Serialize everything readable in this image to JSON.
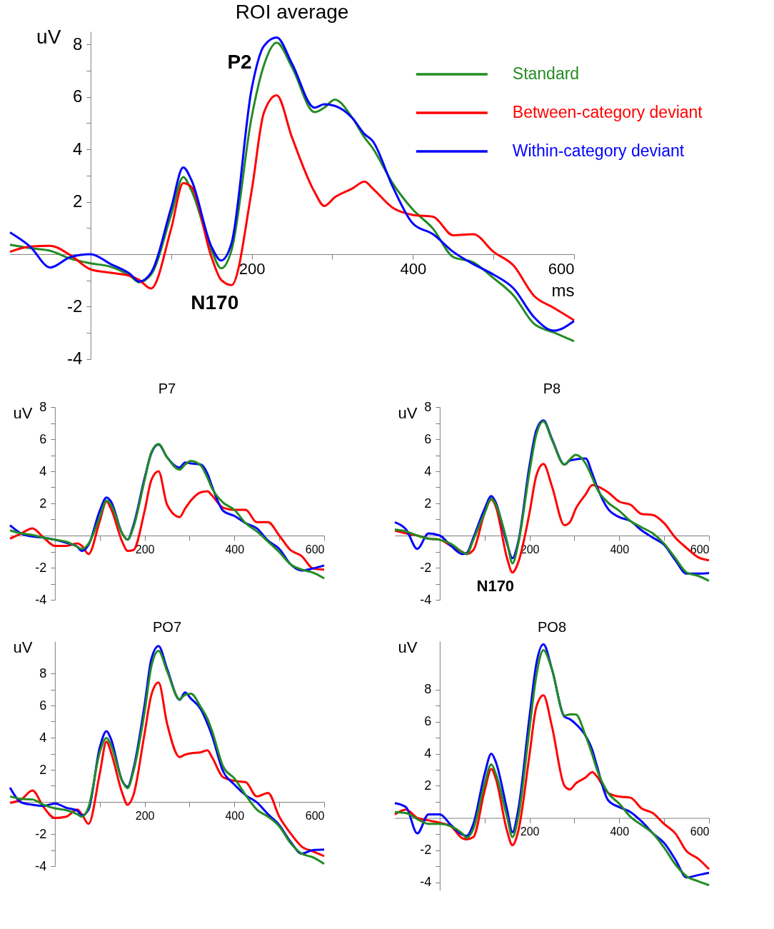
{
  "chart_data": [
    {
      "type": "line",
      "title": "ROI average",
      "xlabel": "ms",
      "ylabel": "uV",
      "legend": "top right",
      "xlim": [
        -100,
        600
      ],
      "ylim": [
        -4,
        8.5
      ],
      "xticks": [
        {
          "value": 100,
          "label": null
        },
        200,
        {
          "value": 300,
          "label": null
        },
        400,
        {
          "value": 500,
          "label": null
        },
        600
      ],
      "yticks": [
        -4,
        {
          "value": -3,
          "label": null
        },
        -2,
        {
          "value": -1,
          "label": null
        },
        {
          "value": 1,
          "label": null
        },
        2,
        {
          "value": 3,
          "label": null
        },
        4,
        {
          "value": 5,
          "label": null
        },
        6,
        {
          "value": 7,
          "label": null
        },
        8
      ],
      "annotations": [
        "P2",
        "N170"
      ],
      "x": [
        -100,
        -75,
        -50,
        -25,
        0,
        25,
        50,
        60,
        75,
        100,
        115,
        125,
        150,
        162,
        175,
        200,
        215,
        231,
        250,
        278,
        290,
        303,
        325,
        340,
        350,
        375,
        400,
        425,
        450,
        475,
        500,
        525,
        550,
        575,
        600
      ],
      "series": [
        {
          "name": "Standard",
          "color": "#238c23",
          "values": [
            0.36,
            0.23,
            0.13,
            -0.17,
            -0.35,
            -0.48,
            -0.85,
            -1.07,
            -0.78,
            1.5,
            2.94,
            2.44,
            0.16,
            -0.54,
            0.16,
            5.25,
            7.2,
            8.07,
            7.13,
            5.42,
            5.59,
            5.9,
            5.19,
            4.45,
            4.05,
            2.7,
            1.7,
            0.97,
            -0.11,
            -0.31,
            -0.91,
            -1.58,
            -2.65,
            -2.99,
            -3.32
          ]
        },
        {
          "name": "Between-category deviant",
          "color": "#ff0000",
          "values": [
            0.09,
            0.29,
            0.32,
            -0.04,
            -0.58,
            -0.71,
            -0.84,
            -0.98,
            -1.31,
            0.97,
            2.71,
            2.57,
            -0.11,
            -0.98,
            -1.18,
            2.44,
            5.39,
            6.06,
            4.45,
            2.37,
            1.84,
            2.17,
            2.51,
            2.77,
            2.51,
            1.77,
            1.5,
            1.43,
            0.72,
            0.76,
            0.09,
            -0.44,
            -1.58,
            -2.05,
            -2.52
          ]
        },
        {
          "name": "Within-category deviant",
          "color": "#0000ff",
          "values": [
            0.83,
            0.29,
            -0.51,
            -0.11,
            0,
            -0.38,
            -0.78,
            -1.05,
            -0.71,
            1.77,
            3.31,
            2.84,
            0.29,
            -0.24,
            0.43,
            6.33,
            7.94,
            8.27,
            7.27,
            5.59,
            5.72,
            5.66,
            5.19,
            4.58,
            4.32,
            2.57,
            1.17,
            0.76,
            0.09,
            -0.38,
            -0.78,
            -1.31,
            -2.39,
            -2.92,
            -2.55
          ]
        }
      ]
    },
    {
      "type": "line",
      "title": "P7",
      "ylabel": "uV",
      "xlim": [
        -100,
        600
      ],
      "ylim": [
        -4,
        8
      ],
      "xticks": [
        {
          "value": 100,
          "label": null
        },
        200,
        {
          "value": 300,
          "label": null
        },
        400,
        {
          "value": 500,
          "label": null
        },
        600
      ],
      "yticks": [
        -4,
        {
          "value": -3,
          "label": null
        },
        -2,
        {
          "value": -1,
          "label": null
        },
        {
          "value": 1,
          "label": null
        },
        2,
        {
          "value": 3,
          "label": null
        },
        4,
        {
          "value": 5,
          "label": null
        },
        6,
        {
          "value": 7,
          "label": null
        },
        8
      ],
      "x": [
        -100,
        -75,
        -50,
        -25,
        0,
        25,
        50,
        60,
        75,
        100,
        115,
        125,
        150,
        162,
        175,
        200,
        215,
        231,
        250,
        278,
        290,
        303,
        325,
        340,
        350,
        375,
        400,
        425,
        450,
        475,
        500,
        525,
        550,
        575,
        600
      ],
      "series": [
        {
          "color": "#ff0000",
          "values": [
            -0.19,
            0.13,
            0.45,
            -0.13,
            -0.64,
            -0.64,
            -0.49,
            -0.64,
            -1.15,
            0.9,
            2.12,
            1.67,
            -0.38,
            -0.96,
            -0.9,
            1.54,
            3.46,
            4.0,
            1.92,
            1.15,
            1.67,
            2.18,
            2.69,
            2.76,
            2.5,
            1.73,
            1.6,
            1.6,
            0.83,
            0.83,
            0,
            -0.9,
            -1.28,
            -2.05,
            -2.12
          ]
        },
        {
          "color": "#0000ff",
          "values": [
            0.64,
            0.13,
            -0.06,
            -0.13,
            -0.26,
            -0.45,
            -0.7,
            -0.96,
            -0.58,
            1.54,
            2.37,
            2.12,
            0.13,
            -0.26,
            0.64,
            3.59,
            5.13,
            5.67,
            4.87,
            4.23,
            4.55,
            4.49,
            4.42,
            3.85,
            3.08,
            1.54,
            1.22,
            0.77,
            0.45,
            -0.32,
            -0.83,
            -1.79,
            -2.18,
            -2.05,
            -1.86
          ]
        },
        {
          "color": "#238c23",
          "values": [
            0.32,
            0.13,
            0.03,
            -0.13,
            -0.26,
            -0.38,
            -0.7,
            -0.83,
            -0.51,
            1.15,
            2.18,
            1.92,
            0.13,
            -0.26,
            0.51,
            3.46,
            5.19,
            5.7,
            4.87,
            4.1,
            4.42,
            4.64,
            4.36,
            3.59,
            2.95,
            2.05,
            1.6,
            0.77,
            0.26,
            -0.38,
            -1.03,
            -1.79,
            -2.12,
            -2.31,
            -2.67
          ]
        }
      ]
    },
    {
      "type": "line",
      "title": "P8",
      "ylabel": "uV",
      "xlim": [
        -100,
        600
      ],
      "ylim": [
        -4,
        8
      ],
      "xticks": [
        {
          "value": 100,
          "label": null
        },
        200,
        {
          "value": 300,
          "label": null
        },
        400,
        {
          "value": 500,
          "label": null
        },
        600
      ],
      "yticks": [
        -4,
        {
          "value": -3,
          "label": null
        },
        -2,
        {
          "value": -1,
          "label": null
        },
        {
          "value": 1,
          "label": null
        },
        2,
        {
          "value": 3,
          "label": null
        },
        4,
        {
          "value": 5,
          "label": null
        },
        6,
        {
          "value": 7,
          "label": null
        },
        8
      ],
      "annotations": [
        "N170"
      ],
      "x": [
        -100,
        -75,
        -50,
        -25,
        0,
        25,
        50,
        60,
        75,
        100,
        115,
        125,
        150,
        162,
        175,
        200,
        215,
        231,
        250,
        278,
        290,
        303,
        325,
        340,
        350,
        375,
        400,
        425,
        450,
        475,
        500,
        525,
        550,
        575,
        600
      ],
      "series": [
        {
          "color": "#ff0000",
          "values": [
            0.32,
            0.13,
            0,
            -0.19,
            -0.26,
            -0.64,
            -1.02,
            -1.15,
            -0.9,
            1.41,
            2.24,
            1.79,
            -1.41,
            -2.3,
            -1.66,
            1.41,
            3.71,
            4.46,
            3.07,
            0.64,
            0.83,
            1.66,
            2.56,
            3.14,
            3.07,
            2.69,
            2.11,
            1.92,
            1.34,
            1.28,
            0.77,
            -0.13,
            -0.77,
            -1.34,
            -1.54
          ]
        },
        {
          "color": "#0000ff",
          "values": [
            0.83,
            0.38,
            -0.83,
            0.13,
            0,
            -0.64,
            -1.15,
            -1.09,
            -0.13,
            1.66,
            2.46,
            2.05,
            -0.51,
            -1.41,
            -0.38,
            4.35,
            6.53,
            7.17,
            6.02,
            4.42,
            4.67,
            4.74,
            4.8,
            3.84,
            3.07,
            1.66,
            1.15,
            0.9,
            0.32,
            -0.13,
            -0.58,
            -1.54,
            -2.37,
            -2.37,
            -2.33
          ]
        },
        {
          "color": "#238c23",
          "values": [
            0.38,
            0.26,
            0,
            -0.19,
            -0.26,
            -0.51,
            -1.02,
            -1.15,
            -0.26,
            1.41,
            2.3,
            1.92,
            -0.38,
            -1.73,
            -0.51,
            3.97,
            6.27,
            7.1,
            5.95,
            4.42,
            4.74,
            5.02,
            4.48,
            3.59,
            2.94,
            2.05,
            1.54,
            0.9,
            0.51,
            0.13,
            -0.51,
            -1.41,
            -2.3,
            -2.5,
            -2.82
          ]
        }
      ]
    },
    {
      "type": "line",
      "title": "PO7",
      "ylabel": "uV",
      "xlim": [
        -100,
        600
      ],
      "ylim": [
        -4,
        10
      ],
      "xticks": [
        {
          "value": 100,
          "label": null
        },
        200,
        {
          "value": 300,
          "label": null
        },
        400,
        {
          "value": 500,
          "label": null
        },
        600
      ],
      "yticks": [
        -4,
        {
          "value": -3,
          "label": null
        },
        -2,
        {
          "value": -1,
          "label": null
        },
        {
          "value": 1,
          "label": null
        },
        2,
        {
          "value": 3,
          "label": null
        },
        4,
        {
          "value": 5,
          "label": null
        },
        6,
        {
          "value": 7,
          "label": null
        },
        8
      ],
      "x": [
        -100,
        -75,
        -50,
        -25,
        0,
        25,
        50,
        60,
        75,
        100,
        115,
        125,
        150,
        162,
        175,
        200,
        215,
        231,
        250,
        278,
        290,
        303,
        325,
        340,
        350,
        375,
        400,
        425,
        450,
        475,
        500,
        525,
        550,
        575,
        600
      ],
      "series": [
        {
          "color": "#ff0000",
          "values": [
            -0.06,
            0.15,
            0.71,
            -0.33,
            -1.0,
            -0.92,
            -0.48,
            -0.77,
            -1.37,
            1.75,
            3.76,
            3.09,
            0.56,
            -0.18,
            0.42,
            4.28,
            6.66,
            7.43,
            4.87,
            2.79,
            2.94,
            3.02,
            3.09,
            3.21,
            2.79,
            1.53,
            1.31,
            1.23,
            0.34,
            0.56,
            -0.92,
            -1.96,
            -2.78,
            -3.08,
            -3.37
          ]
        },
        {
          "color": "#0000ff",
          "values": [
            0.89,
            -0.03,
            -0.18,
            -0.25,
            -0.1,
            -0.36,
            -0.55,
            -0.85,
            -0.48,
            3.39,
            4.4,
            3.91,
            1.31,
            0.94,
            2.05,
            6.06,
            8.89,
            9.7,
            8.29,
            6.36,
            6.81,
            6.43,
            5.77,
            4.87,
            4.13,
            1.9,
            1.08,
            0.42,
            -0.03,
            -0.77,
            -1.44,
            -2.48,
            -3.22,
            -3.0,
            -2.97
          ]
        },
        {
          "color": "#238c23",
          "values": [
            0.34,
            0.19,
            0.15,
            -0.18,
            -0.4,
            -0.51,
            -0.77,
            -0.92,
            -0.33,
            3.09,
            3.98,
            3.54,
            1.31,
            0.86,
            1.9,
            5.62,
            8.44,
            9.4,
            8.14,
            6.39,
            6.66,
            6.73,
            5.91,
            5.17,
            4.43,
            2.2,
            1.46,
            0.42,
            -0.48,
            -0.92,
            -1.52,
            -2.56,
            -3.22,
            -3.45,
            -3.86
          ]
        }
      ]
    },
    {
      "type": "line",
      "title": "PO8",
      "ylabel": "uV",
      "xlim": [
        -100,
        600
      ],
      "ylim": [
        -4.5,
        11
      ],
      "xticks": [
        {
          "value": 100,
          "label": null
        },
        200,
        {
          "value": 300,
          "label": null
        },
        400,
        {
          "value": 500,
          "label": null
        },
        600
      ],
      "yticks": [
        -4,
        {
          "value": -3,
          "label": null
        },
        -2,
        {
          "value": -1,
          "label": null
        },
        {
          "value": 1,
          "label": null
        },
        2,
        {
          "value": 3,
          "label": null
        },
        4,
        {
          "value": 5,
          "label": null
        },
        6,
        {
          "value": 7,
          "label": null
        },
        8
      ],
      "x": [
        -100,
        -75,
        -50,
        -25,
        0,
        25,
        50,
        60,
        75,
        100,
        115,
        125,
        150,
        162,
        175,
        200,
        215,
        231,
        250,
        278,
        290,
        303,
        325,
        340,
        350,
        375,
        400,
        425,
        450,
        475,
        500,
        525,
        550,
        575,
        600
      ],
      "series": [
        {
          "color": "#ff0000",
          "values": [
            0.22,
            0.52,
            0,
            -0.15,
            -0.3,
            -0.52,
            -1.26,
            -1.33,
            -1.19,
            1.7,
            3.04,
            2.44,
            -0.81,
            -1.7,
            -0.81,
            3.93,
            6.89,
            7.63,
            5.7,
            2.0,
            1.78,
            2.15,
            2.52,
            2.86,
            2.59,
            1.56,
            1.33,
            1.26,
            0.59,
            0.3,
            -0.37,
            -0.96,
            -2.07,
            -2.52,
            -3.19
          ]
        },
        {
          "color": "#0000ff",
          "values": [
            0.92,
            0.67,
            -0.96,
            0.22,
            0.22,
            -0.44,
            -1.04,
            -1.11,
            -0.37,
            2.74,
            4.0,
            3.48,
            0.52,
            -0.89,
            0.52,
            6.3,
            9.56,
            10.81,
            9.26,
            6.3,
            6.15,
            5.85,
            5.11,
            4.22,
            3.26,
            1.11,
            0.67,
            0.37,
            -0.22,
            -0.96,
            -1.56,
            -2.59,
            -3.7,
            -3.56,
            -3.41
          ]
        },
        {
          "color": "#238c23",
          "values": [
            0.37,
            0.3,
            -0.07,
            -0.37,
            -0.37,
            -0.52,
            -0.96,
            -1.23,
            -0.67,
            2.15,
            3.33,
            2.74,
            0.07,
            -1.19,
            0.07,
            5.56,
            8.81,
            10.44,
            9.26,
            6.37,
            6.44,
            6.44,
            5.11,
            3.93,
            3.04,
            1.56,
            0.89,
            0.07,
            -0.44,
            -0.96,
            -1.85,
            -2.89,
            -3.63,
            -3.93,
            -4.19
          ]
        }
      ]
    }
  ]
}
